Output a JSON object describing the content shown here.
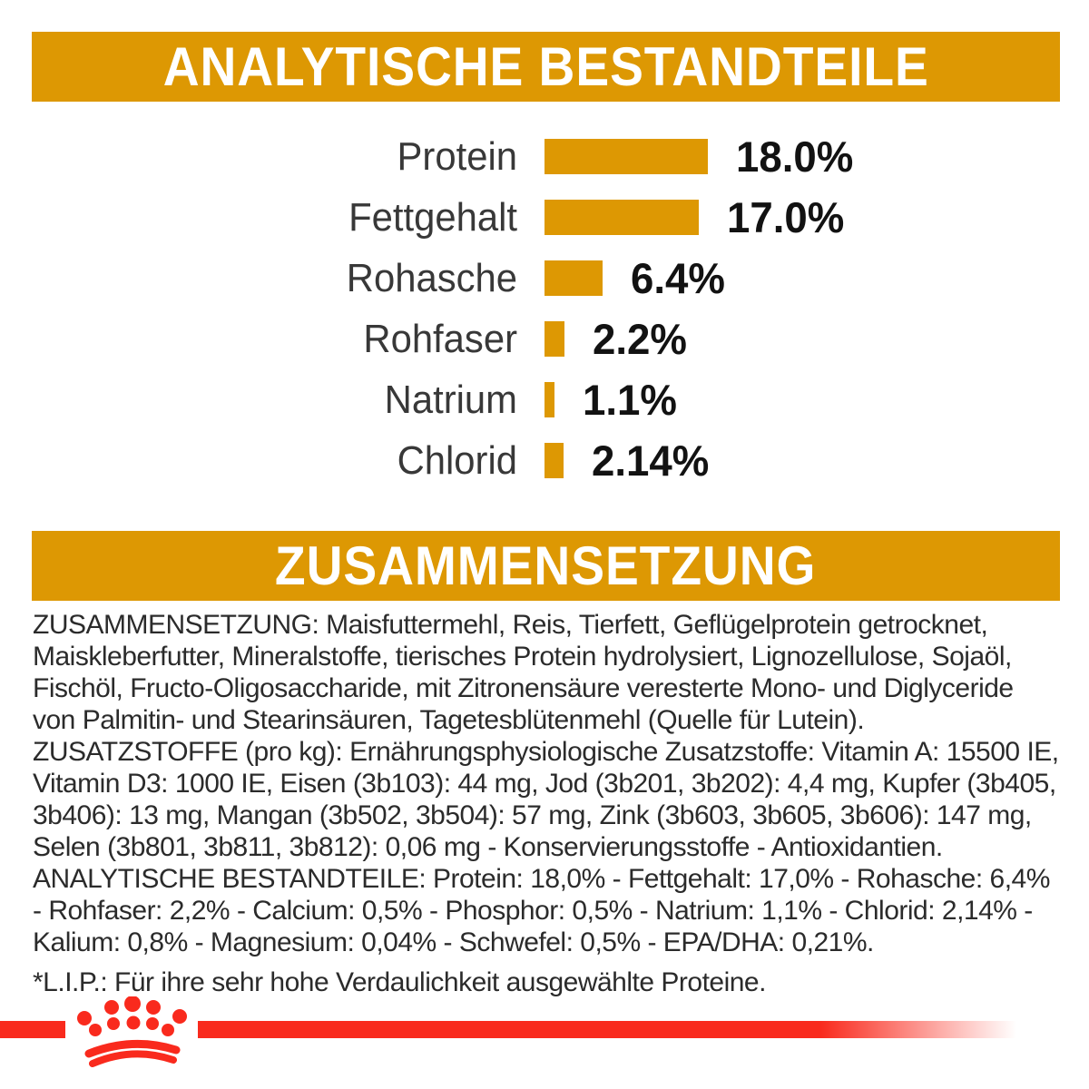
{
  "banners": {
    "analytical": "ANALYTISCHE BESTANDTEILE",
    "composition": "ZUSAMMENSETZUNG"
  },
  "chart_data": {
    "type": "bar",
    "orientation": "horizontal",
    "title": "ANALYTISCHE BESTANDTEILE",
    "categories": [
      "Protein",
      "Fettgehalt",
      "Rohasche",
      "Rohfaser",
      "Natrium",
      "Chlorid"
    ],
    "values": [
      18.0,
      17.0,
      6.4,
      2.2,
      1.1,
      2.14
    ],
    "value_labels": [
      "18.0%",
      "17.0%",
      "6.4%",
      "2.2%",
      "1.1%",
      "2.14%"
    ],
    "unit": "%",
    "xlim": [
      0,
      20
    ],
    "grid": false,
    "bar_color": "#DD9803"
  },
  "paragraphs": {
    "composition": "ZUSAMMENSETZUNG: Maisfuttermehl, Reis, Tierfett, Geflügelprotein getrocknet, Maiskleberfutter, Mineralstoffe, tierisches Protein hydrolysiert, Lignozellulose, Sojaöl, Fischöl, Fructo-Oligosaccharide, mit Zitronensäure veresterte Mono- und Diglyceride von Palmitin- und Stearinsäuren, Tagetesblütenmehl (Quelle für Lutein).",
    "additives": "ZUSATZSTOFFE (pro kg): Ernährungsphysiologische Zusatzstoffe: Vitamin A: 15500 IE, Vitamin D3: 1000 IE, Eisen (3b103): 44 mg, Jod (3b201, 3b202): 4,4 mg, Kupfer (3b405, 3b406): 13 mg, Mangan (3b502, 3b504): 57 mg, Zink (3b603, 3b605, 3b606): 147 mg, Selen (3b801, 3b811, 3b812): 0,06 mg - Konservierungsstoffe - Antioxidantien.",
    "analytical": "ANALYTISCHE BESTANDTEILE: Protein: 18,0% - Fettgehalt: 17,0% - Rohasche: 6,4% - Rohfaser: 2,2% - Calcium: 0,5% - Phosphor: 0,5% - Natrium: 1,1% - Chlorid: 2,14% - Kalium: 0,8% - Magnesium: 0,04% - Schwefel: 0,5% - EPA/DHA: 0,21%.",
    "footnote": "*L.I.P.: Für ihre sehr hohe Verdaulichkeit ausgewählte Proteine."
  },
  "icons": {
    "brand_logo": "royal-canin-crown-icon"
  },
  "colors": {
    "gold": "#DD9803",
    "red": "#F92A1D",
    "text_dark": "#2b2b2b",
    "banner_text": "#ffffff"
  }
}
